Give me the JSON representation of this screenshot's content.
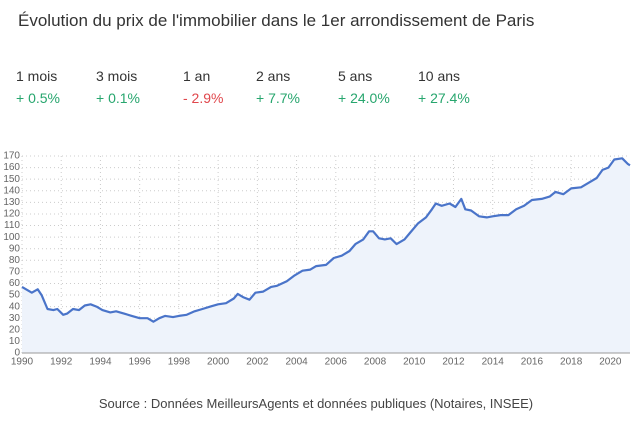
{
  "title": "Évolution du prix de l'immobilier dans le 1er arrondissement de Paris",
  "periods": [
    {
      "label": "1 mois",
      "change": "+ 0.5%",
      "color": "#27a66e"
    },
    {
      "label": "3 mois",
      "change": "+ 0.1%",
      "color": "#27a66e"
    },
    {
      "label": "1 an",
      "change": "- 2.9%",
      "color": "#e0474c"
    },
    {
      "label": "2 ans",
      "change": "+ 7.7%",
      "color": "#27a66e"
    },
    {
      "label": "5 ans",
      "change": "+ 24.0%",
      "color": "#27a66e"
    },
    {
      "label": "10 ans",
      "change": "+ 27.4%",
      "color": "#27a66e"
    }
  ],
  "chart_data": {
    "type": "line",
    "x": [
      1990,
      1990.5,
      1990.8,
      1991,
      1991.3,
      1991.6,
      1991.8,
      1992.1,
      1992.3,
      1992.6,
      1992.9,
      1993.2,
      1993.5,
      1993.8,
      1994.1,
      1994.5,
      1994.8,
      1995.2,
      1995.6,
      1996,
      1996.4,
      1996.7,
      1997,
      1997.3,
      1997.7,
      1998,
      1998.4,
      1998.8,
      1999.2,
      1999.6,
      2000,
      2000.4,
      2000.8,
      2001,
      2001.3,
      2001.6,
      2001.9,
      2002.3,
      2002.7,
      2003,
      2003.5,
      2003.9,
      2004.3,
      2004.7,
      2005,
      2005.5,
      2005.9,
      2006.3,
      2006.7,
      2007,
      2007.4,
      2007.7,
      2007.9,
      2008.2,
      2008.5,
      2008.8,
      2009.1,
      2009.5,
      2009.8,
      2010.2,
      2010.6,
      2010.9,
      2011.1,
      2011.4,
      2011.8,
      2012.1,
      2012.4,
      2012.6,
      2012.9,
      2013.3,
      2013.7,
      2014,
      2014.4,
      2014.8,
      2015.2,
      2015.6,
      2016,
      2016.5,
      2016.9,
      2017.2,
      2017.6,
      2018,
      2018.5,
      2018.9,
      2019.3,
      2019.6,
      2019.9,
      2020.2,
      2020.6,
      2020.9,
      2021
    ],
    "values": [
      57,
      52,
      55,
      50,
      38,
      37,
      38,
      33,
      34,
      38,
      37,
      41,
      42,
      40,
      37,
      35,
      36,
      34,
      32,
      30,
      30,
      27,
      30,
      32,
      31,
      32,
      33,
      36,
      38,
      40,
      42,
      43,
      47,
      51,
      48,
      46,
      52,
      53,
      57,
      58,
      62,
      67,
      71,
      72,
      75,
      76,
      82,
      84,
      88,
      94,
      98,
      105,
      105,
      99,
      98,
      99,
      94,
      98,
      104,
      112,
      117,
      124,
      129,
      127,
      129,
      126,
      133,
      124,
      123,
      118,
      117,
      118,
      119,
      119,
      124,
      127,
      132,
      133,
      135,
      139,
      137,
      142,
      143,
      147,
      151,
      158,
      160,
      167,
      168,
      163,
      162
    ],
    "color": "#4a74c9",
    "fill": "#eef3fb",
    "xlim": [
      1990,
      2021
    ],
    "xticks": [
      1990,
      1992,
      1994,
      1996,
      1998,
      2000,
      2002,
      2004,
      2006,
      2008,
      2010,
      2012,
      2014,
      2016,
      2018,
      2020
    ],
    "ylim": [
      0,
      170
    ],
    "yticks": [
      0,
      10,
      20,
      30,
      40,
      50,
      60,
      70,
      80,
      90,
      100,
      110,
      120,
      130,
      140,
      150,
      160,
      170
    ],
    "grid": true
  },
  "source": "Source : Données MeilleursAgents et données publiques (Notaires, INSEE)"
}
